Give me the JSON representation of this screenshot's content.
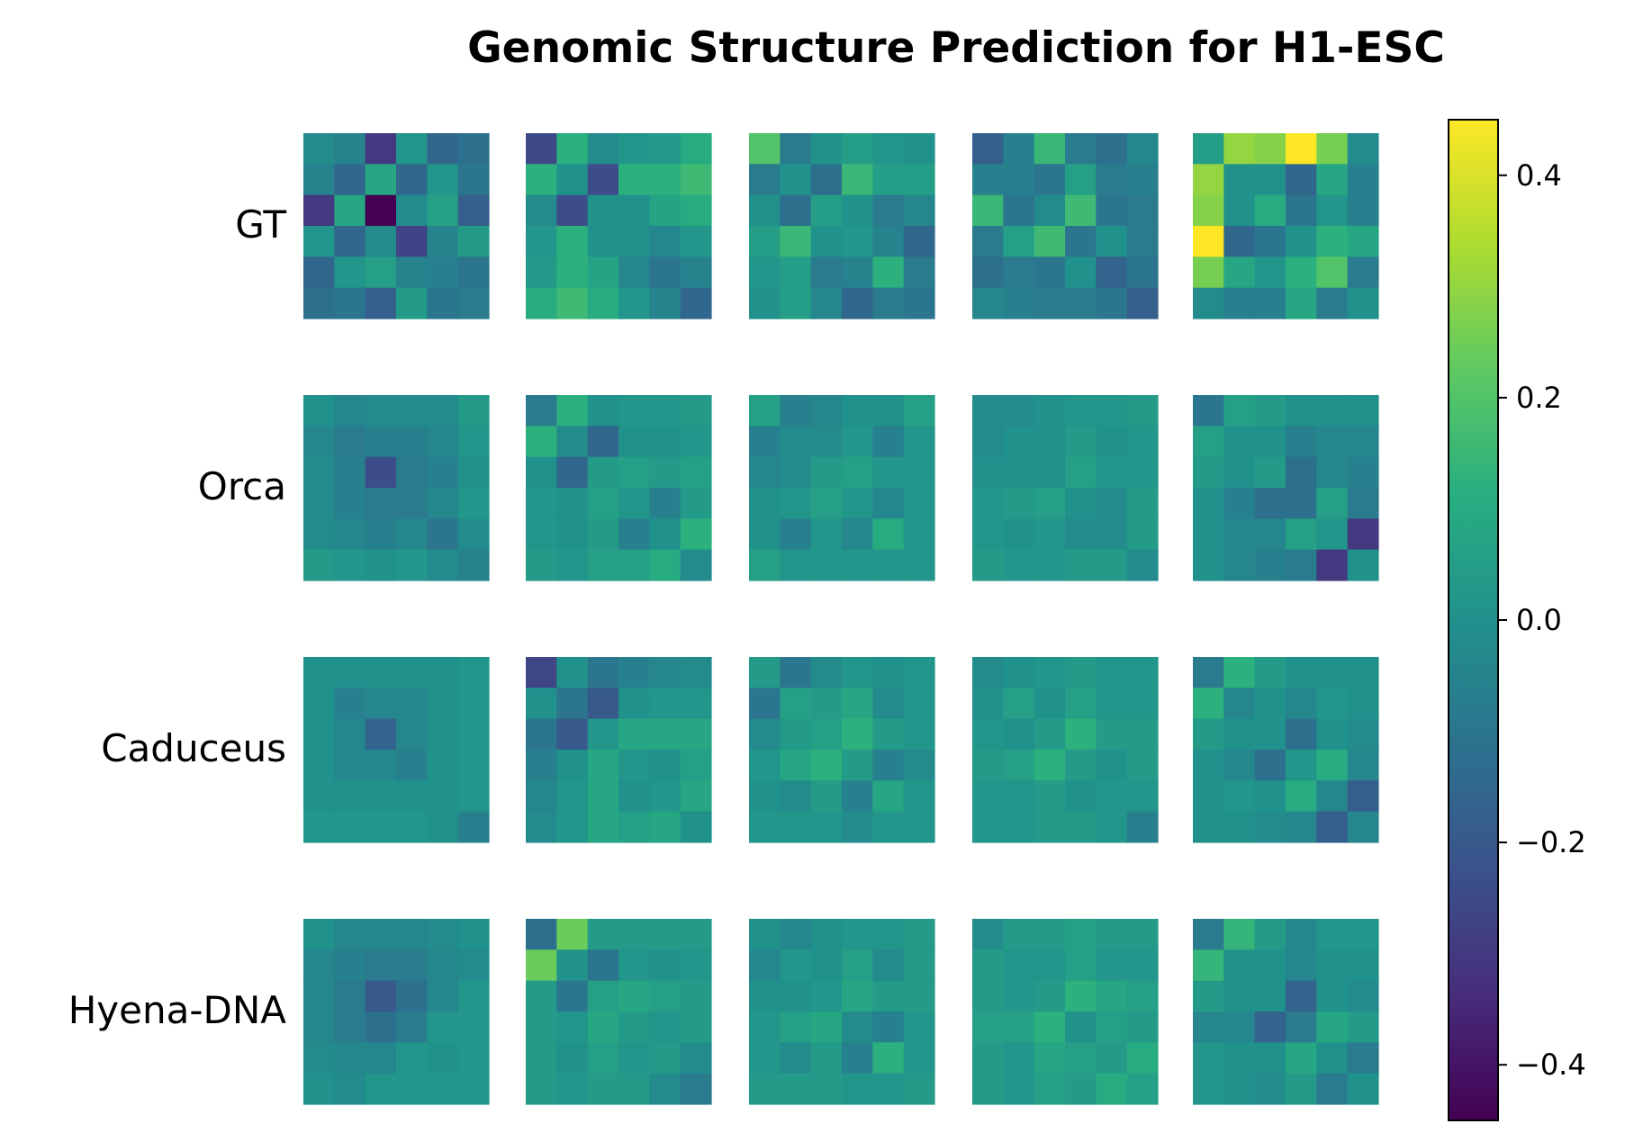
{
  "chart_data": {
    "type": "heatmap",
    "title": "Genomic Structure Prediction for H1-ESC",
    "rows": [
      "GT",
      "Orca",
      "Caduceus",
      "Hyena-DNA"
    ],
    "columns": 5,
    "grid_size": 6,
    "colormap": "viridis",
    "vmin": -0.45,
    "vmax": 0.45,
    "colorbar": {
      "ticks": [
        0.4,
        0.2,
        0.0,
        -0.2,
        -0.4
      ],
      "tick_labels": [
        "0.4",
        "0.2",
        "0.0",
        "−0.2",
        "−0.4"
      ]
    },
    "matrices": [
      [
        [
          [
            -0.02,
            -0.05,
            -0.3,
            0.02,
            -0.15,
            -0.12
          ],
          [
            -0.05,
            -0.15,
            0.08,
            -0.15,
            0.02,
            -0.1
          ],
          [
            -0.3,
            0.08,
            -0.45,
            -0.02,
            0.06,
            -0.18
          ],
          [
            0.02,
            -0.15,
            -0.02,
            -0.27,
            -0.05,
            0.04
          ],
          [
            -0.15,
            0.02,
            0.06,
            -0.05,
            -0.06,
            -0.1
          ],
          [
            -0.12,
            -0.1,
            -0.18,
            0.04,
            -0.1,
            -0.08
          ]
        ],
        [
          [
            -0.25,
            0.12,
            -0.02,
            0.02,
            0.03,
            0.1
          ],
          [
            0.12,
            0.0,
            -0.24,
            0.12,
            0.12,
            0.16
          ],
          [
            -0.02,
            -0.24,
            0.0,
            0.0,
            0.07,
            0.1
          ],
          [
            0.02,
            0.12,
            0.0,
            0.0,
            -0.04,
            0.02
          ],
          [
            0.03,
            0.12,
            0.07,
            -0.04,
            -0.1,
            -0.05
          ],
          [
            0.1,
            0.16,
            0.1,
            0.02,
            -0.05,
            -0.15
          ]
        ],
        [
          [
            0.2,
            -0.08,
            0.0,
            0.05,
            0.02,
            0.0
          ],
          [
            -0.08,
            0.0,
            -0.12,
            0.15,
            0.05,
            0.05
          ],
          [
            0.0,
            -0.12,
            0.05,
            0.0,
            -0.08,
            -0.04
          ],
          [
            0.05,
            0.15,
            0.0,
            0.02,
            -0.05,
            -0.15
          ],
          [
            0.02,
            0.05,
            -0.08,
            -0.05,
            0.12,
            -0.08
          ],
          [
            0.0,
            0.05,
            -0.04,
            -0.15,
            -0.08,
            -0.1
          ]
        ],
        [
          [
            -0.18,
            -0.06,
            0.15,
            -0.08,
            -0.12,
            -0.04
          ],
          [
            -0.06,
            -0.06,
            -0.1,
            0.06,
            -0.08,
            -0.06
          ],
          [
            0.15,
            -0.1,
            -0.02,
            0.16,
            -0.1,
            -0.08
          ],
          [
            -0.08,
            0.06,
            0.16,
            -0.1,
            0.0,
            -0.08
          ],
          [
            -0.12,
            -0.08,
            -0.1,
            0.0,
            -0.16,
            -0.1
          ],
          [
            -0.04,
            -0.06,
            -0.08,
            -0.08,
            -0.1,
            -0.18
          ]
        ],
        [
          [
            0.05,
            0.3,
            0.28,
            0.45,
            0.26,
            -0.02
          ],
          [
            0.3,
            0.0,
            0.0,
            -0.15,
            0.08,
            -0.06
          ],
          [
            0.28,
            0.0,
            0.1,
            -0.1,
            0.02,
            -0.06
          ],
          [
            0.45,
            -0.15,
            -0.1,
            0.0,
            0.12,
            0.08
          ],
          [
            0.26,
            0.08,
            0.02,
            0.12,
            0.2,
            -0.08
          ],
          [
            -0.02,
            -0.06,
            -0.06,
            0.08,
            -0.08,
            0.0
          ]
        ]
      ],
      [
        [
          [
            0.0,
            -0.04,
            -0.02,
            -0.02,
            -0.02,
            0.04
          ],
          [
            -0.04,
            -0.08,
            -0.06,
            -0.06,
            -0.04,
            0.02
          ],
          [
            -0.02,
            -0.06,
            -0.24,
            -0.08,
            -0.06,
            0.0
          ],
          [
            -0.02,
            -0.06,
            -0.08,
            -0.08,
            -0.04,
            0.02
          ],
          [
            -0.02,
            -0.04,
            -0.06,
            -0.04,
            -0.1,
            -0.02
          ],
          [
            0.04,
            0.02,
            0.0,
            0.02,
            -0.02,
            -0.05
          ]
        ],
        [
          [
            -0.08,
            0.12,
            0.0,
            0.02,
            0.02,
            0.04
          ],
          [
            0.12,
            -0.02,
            -0.15,
            0.0,
            0.0,
            0.02
          ],
          [
            0.0,
            -0.15,
            0.04,
            0.06,
            0.04,
            0.06
          ],
          [
            0.02,
            0.0,
            0.06,
            0.02,
            -0.06,
            0.04
          ],
          [
            0.02,
            0.0,
            0.04,
            -0.06,
            0.0,
            0.12
          ],
          [
            0.04,
            0.02,
            0.06,
            0.06,
            0.1,
            -0.02
          ]
        ],
        [
          [
            0.06,
            -0.06,
            -0.04,
            0.0,
            0.0,
            0.06
          ],
          [
            -0.06,
            -0.02,
            -0.02,
            0.02,
            -0.06,
            0.02
          ],
          [
            -0.04,
            -0.02,
            0.04,
            0.06,
            0.02,
            0.02
          ],
          [
            0.0,
            0.02,
            0.06,
            0.02,
            -0.04,
            0.02
          ],
          [
            0.0,
            -0.06,
            0.02,
            -0.04,
            0.1,
            0.02
          ],
          [
            0.06,
            0.02,
            0.02,
            0.02,
            0.02,
            0.02
          ]
        ],
        [
          [
            -0.02,
            -0.02,
            0.0,
            0.02,
            0.02,
            0.04
          ],
          [
            -0.02,
            0.0,
            0.0,
            0.04,
            0.0,
            0.02
          ],
          [
            0.0,
            0.0,
            0.0,
            0.06,
            0.02,
            0.02
          ],
          [
            0.02,
            0.04,
            0.06,
            0.0,
            -0.02,
            0.04
          ],
          [
            0.02,
            0.0,
            0.02,
            -0.02,
            -0.02,
            0.04
          ],
          [
            0.04,
            0.02,
            0.02,
            0.04,
            0.04,
            -0.02
          ]
        ],
        [
          [
            -0.1,
            0.06,
            0.04,
            0.0,
            0.0,
            0.0
          ],
          [
            0.06,
            0.0,
            0.0,
            -0.06,
            -0.04,
            -0.04
          ],
          [
            0.04,
            0.0,
            0.04,
            -0.12,
            -0.04,
            -0.06
          ],
          [
            0.0,
            -0.06,
            -0.12,
            -0.12,
            0.06,
            -0.08
          ],
          [
            0.0,
            -0.04,
            -0.04,
            0.06,
            0.02,
            -0.3
          ],
          [
            0.0,
            -0.04,
            -0.06,
            -0.08,
            -0.3,
            0.0
          ]
        ]
      ],
      [
        [
          [
            0.0,
            0.0,
            0.0,
            0.0,
            0.0,
            0.02
          ],
          [
            0.0,
            -0.06,
            -0.04,
            -0.04,
            0.0,
            0.02
          ],
          [
            0.0,
            -0.04,
            -0.16,
            -0.04,
            0.0,
            0.02
          ],
          [
            0.0,
            -0.04,
            -0.04,
            -0.06,
            0.0,
            0.02
          ],
          [
            0.0,
            0.0,
            0.0,
            0.0,
            0.0,
            0.02
          ],
          [
            0.02,
            0.02,
            0.02,
            0.02,
            0.0,
            -0.06
          ]
        ],
        [
          [
            -0.26,
            0.0,
            -0.1,
            -0.06,
            -0.04,
            -0.02
          ],
          [
            0.0,
            -0.1,
            -0.2,
            0.0,
            0.02,
            0.02
          ],
          [
            -0.1,
            -0.2,
            0.02,
            0.08,
            0.08,
            0.08
          ],
          [
            -0.06,
            0.0,
            0.08,
            0.02,
            0.0,
            0.06
          ],
          [
            -0.04,
            0.02,
            0.08,
            0.0,
            0.02,
            0.08
          ],
          [
            -0.02,
            0.02,
            0.08,
            0.06,
            0.08,
            0.0
          ]
        ],
        [
          [
            0.04,
            -0.1,
            -0.02,
            0.02,
            0.0,
            0.02
          ],
          [
            -0.1,
            0.06,
            0.04,
            0.08,
            -0.02,
            0.02
          ],
          [
            -0.02,
            0.04,
            0.06,
            0.12,
            0.04,
            0.02
          ],
          [
            0.02,
            0.08,
            0.12,
            0.04,
            -0.06,
            -0.02
          ],
          [
            0.0,
            -0.02,
            0.04,
            -0.06,
            0.08,
            0.02
          ],
          [
            0.02,
            0.02,
            0.02,
            -0.02,
            0.02,
            0.02
          ]
        ],
        [
          [
            -0.02,
            0.0,
            0.02,
            0.04,
            0.02,
            0.02
          ],
          [
            0.0,
            0.06,
            0.0,
            0.06,
            0.02,
            0.02
          ],
          [
            0.02,
            0.0,
            0.04,
            0.12,
            0.04,
            0.04
          ],
          [
            0.04,
            0.06,
            0.12,
            0.04,
            0.0,
            0.04
          ],
          [
            0.02,
            0.02,
            0.04,
            0.0,
            0.02,
            0.02
          ],
          [
            0.02,
            0.02,
            0.04,
            0.04,
            0.02,
            -0.06
          ]
        ],
        [
          [
            -0.08,
            0.12,
            0.04,
            0.0,
            0.0,
            0.0
          ],
          [
            0.12,
            -0.04,
            0.0,
            -0.04,
            0.02,
            0.0
          ],
          [
            0.04,
            0.0,
            0.0,
            -0.12,
            0.0,
            -0.02
          ],
          [
            0.0,
            -0.04,
            -0.12,
            0.02,
            0.1,
            -0.04
          ],
          [
            0.0,
            0.02,
            0.0,
            0.1,
            -0.04,
            -0.18
          ],
          [
            0.0,
            0.0,
            -0.02,
            -0.04,
            -0.18,
            -0.04
          ]
        ]
      ],
      [
        [
          [
            0.0,
            -0.04,
            -0.04,
            -0.04,
            -0.02,
            0.0
          ],
          [
            -0.04,
            -0.06,
            -0.08,
            -0.08,
            -0.04,
            -0.02
          ],
          [
            -0.04,
            -0.08,
            -0.2,
            -0.12,
            -0.04,
            0.02
          ],
          [
            -0.04,
            -0.08,
            -0.12,
            -0.08,
            0.02,
            0.02
          ],
          [
            -0.02,
            -0.04,
            -0.04,
            0.02,
            0.0,
            0.02
          ],
          [
            0.0,
            -0.02,
            0.02,
            0.02,
            0.02,
            0.02
          ]
        ],
        [
          [
            -0.12,
            0.24,
            0.04,
            0.04,
            0.04,
            0.04
          ],
          [
            0.24,
            0.0,
            -0.1,
            0.02,
            0.0,
            0.02
          ],
          [
            0.04,
            -0.1,
            0.06,
            0.08,
            0.06,
            0.04
          ],
          [
            0.04,
            0.02,
            0.08,
            0.04,
            0.02,
            0.04
          ],
          [
            0.04,
            0.0,
            0.06,
            0.02,
            0.04,
            -0.02
          ],
          [
            0.04,
            0.02,
            0.04,
            0.04,
            -0.02,
            -0.08
          ]
        ],
        [
          [
            0.0,
            -0.04,
            0.0,
            0.02,
            0.02,
            0.04
          ],
          [
            -0.04,
            0.02,
            0.0,
            0.06,
            -0.02,
            0.04
          ],
          [
            0.0,
            0.0,
            0.02,
            0.08,
            0.04,
            0.04
          ],
          [
            0.02,
            0.06,
            0.08,
            -0.02,
            -0.06,
            0.02
          ],
          [
            0.02,
            -0.02,
            0.04,
            -0.06,
            0.12,
            0.02
          ],
          [
            0.04,
            0.04,
            0.04,
            0.02,
            0.02,
            0.04
          ]
        ],
        [
          [
            -0.02,
            0.04,
            0.04,
            0.06,
            0.04,
            0.04
          ],
          [
            0.04,
            0.02,
            0.02,
            0.06,
            0.02,
            0.02
          ],
          [
            0.04,
            0.02,
            0.04,
            0.12,
            0.08,
            0.06
          ],
          [
            0.06,
            0.06,
            0.12,
            0.0,
            0.06,
            0.04
          ],
          [
            0.04,
            0.02,
            0.08,
            0.06,
            0.04,
            0.1
          ],
          [
            0.04,
            0.02,
            0.06,
            0.04,
            0.1,
            0.06
          ]
        ],
        [
          [
            -0.08,
            0.14,
            0.04,
            -0.04,
            0.02,
            0.02
          ],
          [
            0.14,
            0.0,
            0.0,
            -0.04,
            0.0,
            0.0
          ],
          [
            0.04,
            0.0,
            0.0,
            -0.16,
            0.0,
            -0.02
          ],
          [
            -0.04,
            -0.04,
            -0.16,
            -0.08,
            0.08,
            0.04
          ],
          [
            0.02,
            0.0,
            0.0,
            0.08,
            0.0,
            -0.08
          ],
          [
            0.02,
            0.0,
            -0.02,
            0.04,
            -0.08,
            0.0
          ]
        ]
      ]
    ]
  }
}
